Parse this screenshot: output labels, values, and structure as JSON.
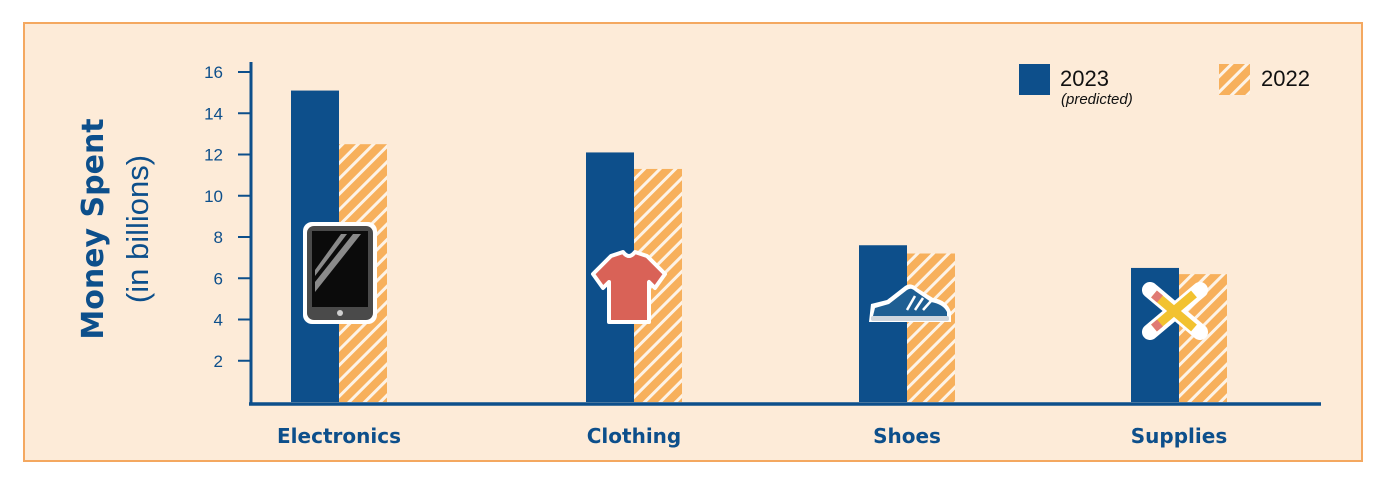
{
  "chart_data": {
    "type": "bar",
    "title": "",
    "xlabel": "",
    "ylabel": "Money Spent",
    "ylabel_sub": "(in billions)",
    "ylim": [
      0,
      16
    ],
    "yticks": [
      2,
      4,
      6,
      8,
      10,
      12,
      14,
      16
    ],
    "grid": false,
    "legend_position": "top-right",
    "categories": [
      "Electronics",
      "Clothing",
      "Shoes",
      "Supplies"
    ],
    "category_icons": [
      "tablet-icon",
      "tshirt-icon",
      "sneaker-icon",
      "pencil-icon"
    ],
    "series": [
      {
        "name": "2023",
        "note": "(predicted)",
        "values": [
          15.1,
          12.1,
          7.6,
          6.5
        ],
        "color": "#0d4f8b",
        "pattern": "solid"
      },
      {
        "name": "2022",
        "note": "",
        "values": [
          12.5,
          11.3,
          7.2,
          6.2
        ],
        "color": "#f7b05c",
        "pattern": "diagonal-stripes"
      }
    ]
  },
  "colors": {
    "background": "#fdebd8",
    "border": "#f4a860",
    "axis": "#0d4f8b",
    "text": "#0d4f8b"
  }
}
